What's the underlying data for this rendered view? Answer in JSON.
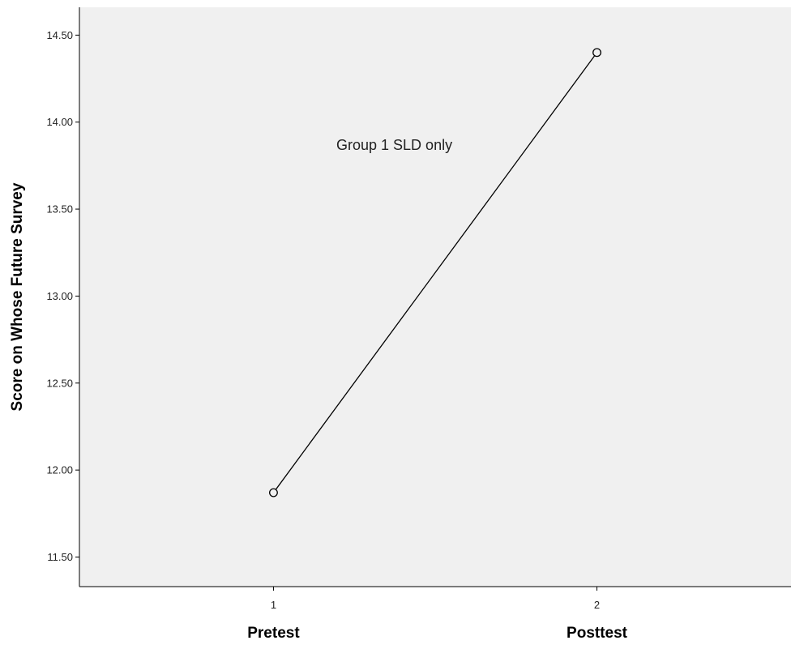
{
  "chart_data": {
    "type": "line",
    "title": "",
    "ylabel": "Score on Whose Future Survey",
    "xlabel": "",
    "x": [
      1,
      2
    ],
    "x_tick_labels": [
      "1",
      "2"
    ],
    "category_labels": [
      "Pretest",
      "Posttest"
    ],
    "xlim": [
      0.4,
      2.6
    ],
    "ylim": [
      11.33,
      14.66
    ],
    "y_ticks": [
      11.5,
      12.0,
      12.5,
      13.0,
      13.5,
      14.0,
      14.5
    ],
    "y_tick_labels": [
      "11.50",
      "12.00",
      "12.50",
      "13.00",
      "13.50",
      "14.00",
      "14.50"
    ],
    "series": [
      {
        "values": [
          11.87,
          14.4
        ],
        "marker": "open-circle"
      }
    ],
    "annotation": "Group 1 SLD only",
    "grid": false,
    "colors": {
      "plot_background": "#f0f0f0",
      "line": "#000000",
      "axis": "#000000"
    }
  }
}
